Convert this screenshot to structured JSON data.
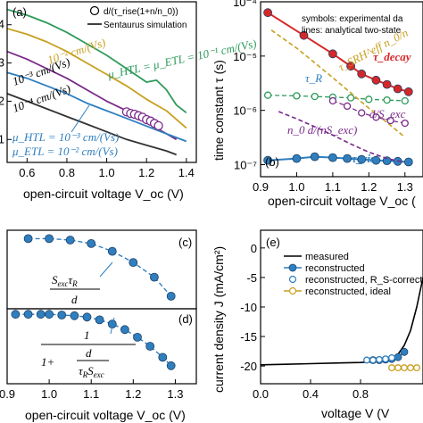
{
  "chart_data": [
    {
      "panel": "(a)",
      "type": "line",
      "xlabel": "open-circuit voltage V_oc (V)",
      "xlim": [
        0.5,
        1.45
      ],
      "xticks": [
        "0.6",
        "0.8",
        "1.0",
        "1.2",
        "1.4"
      ],
      "yticks": [
        "4",
        "3",
        "2",
        "1"
      ],
      "legend": [
        {
          "label": "d/(τ_rise(1+n/n_0))",
          "marker": "open-circle"
        },
        {
          "label": "Sentaurus simulation",
          "marker": "line"
        }
      ],
      "annotations": [
        {
          "text": "10⁻² cm/(Vs)",
          "color": "#c8a020"
        },
        {
          "text": "μ_HTL = μ_ETL = 10⁻¹ cm/(Vs)",
          "color": "#2e9a5a"
        },
        {
          "text": "10⁻³ cm/(Vs)",
          "color": "#000000"
        },
        {
          "text": "10⁻⁴ cm/(Vs)",
          "color": "#000000"
        },
        {
          "text": "μ_HTL = 10⁻³ cm/(Vs)",
          "color": "#2f7fbf"
        },
        {
          "text": "μ_ETL = 10⁻² cm/(Vs)",
          "color": "#2f7fbf"
        }
      ],
      "series": [
        {
          "label": "10⁻¹ cm/(Vs)",
          "color": "#2e9a5a",
          "x": [
            0.5,
            0.6,
            0.7,
            0.8,
            0.9,
            1.0,
            1.1,
            1.2,
            1.25,
            1.3,
            1.35,
            1.4
          ],
          "y": [
            4.4,
            4.25,
            4.05,
            3.8,
            3.5,
            3.2,
            2.85,
            2.5,
            2.55,
            2.3,
            1.9,
            1.7
          ]
        },
        {
          "label": "10⁻² cm/(Vs)",
          "color": "#c8a020",
          "x": [
            0.5,
            0.6,
            0.7,
            0.8,
            0.9,
            1.0,
            1.1,
            1.2,
            1.3,
            1.4
          ],
          "y": [
            3.9,
            3.75,
            3.55,
            3.3,
            3.0,
            2.7,
            2.4,
            2.05,
            1.75,
            1.3
          ]
        },
        {
          "label": "10⁻³ cm/(Vs)",
          "color": "#7a2a8a",
          "x": [
            0.5,
            0.6,
            0.7,
            0.8,
            0.9,
            1.0,
            1.1,
            1.2,
            1.3,
            1.35
          ],
          "y": [
            3.3,
            3.1,
            2.85,
            2.6,
            2.3,
            2.0,
            1.75,
            1.45,
            1.15,
            1.0
          ]
        },
        {
          "label": "μ_HTL = 10⁻³, μ_ETL = 10⁻²",
          "color": "#2f7fbf",
          "x": [
            0.5,
            0.6,
            0.7,
            0.8,
            0.9,
            1.0,
            1.1,
            1.2,
            1.3,
            1.4
          ],
          "y": [
            2.75,
            2.6,
            2.4,
            2.2,
            1.95,
            1.75,
            1.55,
            1.35,
            1.15,
            0.95
          ]
        },
        {
          "label": "10⁻⁴ cm/(Vs)",
          "color": "#333333",
          "x": [
            0.5,
            0.6,
            0.7,
            0.8,
            0.9,
            1.0,
            1.1,
            1.2,
            1.3,
            1.35
          ],
          "y": [
            2.2,
            2.0,
            1.8,
            1.6,
            1.4,
            1.2,
            1.0,
            0.85,
            0.7,
            0.6
          ]
        }
      ],
      "markers": {
        "label": "d/(τ_rise(1+n/n_0))",
        "color": "#7a2a8a",
        "x": [
          1.1,
          1.12,
          1.14,
          1.16,
          1.18,
          1.2,
          1.22,
          1.24,
          1.26
        ],
        "y": [
          1.72,
          1.68,
          1.66,
          1.62,
          1.58,
          1.52,
          1.48,
          1.42,
          1.36
        ]
      }
    },
    {
      "panel": "(b)",
      "type": "line",
      "xlabel": "open-circuit voltage V_oc (",
      "ylabel": "time constant τ (s)",
      "xlim": [
        0.9,
        1.35
      ],
      "yscale": "log",
      "ylim": [
        6e-08,
        0.0001
      ],
      "xticks": [
        "0.9",
        "1.0",
        "1.1",
        "1.2",
        "1.3"
      ],
      "yticks": [
        "10⁻⁷",
        "10⁻⁶",
        "10⁻⁵",
        "10⁻⁴"
      ],
      "legend_text": [
        "symbols: experimental da",
        "lines: analytical two-state"
      ],
      "annotations": [
        {
          "text": "τ_decay",
          "color": "#d62728"
        },
        {
          "text": "τ_SRH^eff n_0/n",
          "color": "#c8a020"
        },
        {
          "text": "τ_R",
          "color": "#2f7fbf"
        },
        {
          "text": "n_0 d/(nS_exc)",
          "color": "#7a2a8a"
        },
        {
          "text": "d/S_exc",
          "color": "#7a2a8a"
        },
        {
          "text": "τ_rise",
          "color": "#2f7fbf"
        }
      ],
      "series": [
        {
          "label": "τ_decay",
          "color": "#d62728",
          "marker": "filled-circle",
          "x": [
            0.92,
            1.02,
            1.1,
            1.15,
            1.18,
            1.22,
            1.25,
            1.28,
            1.31
          ],
          "y": [
            6.3e-05,
            2.4e-05,
            1.1e-05,
            6.5e-06,
            4.7e-06,
            3.6e-06,
            3e-06,
            2.5e-06,
            2.2e-06
          ]
        },
        {
          "label": "τ_rise",
          "color": "#2f7fbf",
          "marker": "filled-circle",
          "x": [
            0.92,
            1.0,
            1.05,
            1.1,
            1.14,
            1.18,
            1.22,
            1.25,
            1.28,
            1.31
          ],
          "y": [
            1.2e-07,
            1.3e-07,
            1.4e-07,
            1.35e-07,
            1.3e-07,
            1.25e-07,
            1.2e-07,
            1.18e-07,
            1.15e-07,
            1.12e-07
          ]
        },
        {
          "label": "τ_R",
          "color": "#2e9a5a",
          "marker": "open-circle",
          "x": [
            0.92,
            1.0,
            1.05,
            1.1,
            1.15,
            1.2,
            1.25,
            1.3
          ],
          "y": [
            1.9e-06,
            1.85e-06,
            1.8e-06,
            1.75e-06,
            1.7e-06,
            1.6e-06,
            1.55e-06,
            1.5e-06
          ]
        },
        {
          "label": "τ_SRH^eff n_0/n",
          "color": "#c8a020",
          "dash": true,
          "x": [
            0.93,
            1.0,
            1.05,
            1.1,
            1.15,
            1.2,
            1.25,
            1.3
          ],
          "y": [
            3e-05,
            1.4e-05,
            7.5e-06,
            4e-06,
            2.1e-06,
            1.1e-06,
            6e-07,
            3.2e-07
          ]
        },
        {
          "label": "n_0 d/(nS_exc)",
          "color": "#7a2a8a",
          "dash": true,
          "x": [
            0.95,
            1.0,
            1.05,
            1.1,
            1.15,
            1.2,
            1.25,
            1.3
          ],
          "y": [
            9.5e-07,
            7e-07,
            5e-07,
            3.5e-07,
            2.4e-07,
            1.7e-07,
            1.3e-07,
            1.1e-07
          ]
        },
        {
          "label": "d/S_exc",
          "color": "#7a2a8a",
          "marker": "open-circle",
          "x": [
            1.1,
            1.14,
            1.18,
            1.22,
            1.26,
            1.3
          ],
          "y": [
            1.5e-06,
            1.2e-06,
            9e-07,
            7.5e-07,
            6.5e-07,
            5.8e-07
          ]
        }
      ]
    },
    {
      "panel": "(c)",
      "type": "line",
      "xlim": [
        0.9,
        1.35
      ],
      "annotation": "S_exc τ_R / d",
      "series": [
        {
          "label": "S_exc τ_R / d",
          "color": "#2f7fbf",
          "marker": "filled-circle",
          "dash": true,
          "x": [
            0.95,
            1.0,
            1.05,
            1.1,
            1.15,
            1.2,
            1.25,
            1.29
          ],
          "y": [
            1.0,
            1.0,
            0.98,
            0.93,
            0.82,
            0.66,
            0.45,
            0.18
          ]
        }
      ]
    },
    {
      "panel": "(d)",
      "type": "line",
      "xlabel": "open-circuit voltage V_oc (V)",
      "xlim": [
        0.9,
        1.35
      ],
      "xticks": [
        "0.9",
        "1.0",
        "1.1",
        "1.2",
        "1.3"
      ],
      "annotation": "1 / (1 + d/(τ_R S_exc))",
      "series": [
        {
          "label": "1/(1+d/(τ_R S_exc))",
          "color": "#2f7fbf",
          "marker": "filled-circle",
          "dash": true,
          "x": [
            0.92,
            0.95,
            0.98,
            1.0,
            1.03,
            1.06,
            1.09,
            1.12,
            1.15,
            1.18,
            1.21,
            1.24,
            1.27,
            1.29
          ],
          "y": [
            1.0,
            1.0,
            1.0,
            1.0,
            0.99,
            0.98,
            0.96,
            0.92,
            0.86,
            0.78,
            0.67,
            0.54,
            0.38,
            0.26
          ]
        }
      ]
    },
    {
      "panel": "(e)",
      "type": "line",
      "xlabel": "voltage V (V",
      "ylabel": "current density J (mA/cm²)",
      "xlim": [
        0.0,
        1.3
      ],
      "ylim": [
        -23,
        3
      ],
      "xticks": [
        "0.0",
        "0.4",
        "0.8"
      ],
      "yticks": [
        "-20",
        "-15",
        "-10",
        "-5",
        "0"
      ],
      "legend": [
        {
          "label": "measured",
          "color": "#000000",
          "marker": "line"
        },
        {
          "label": "reconstructed",
          "color": "#2f7fbf",
          "marker": "filled-circle-line"
        },
        {
          "label": "reconstructed, R_S-corrected",
          "color": "#2f7fbf",
          "marker": "open-circle"
        },
        {
          "label": "reconstructed, ideal",
          "color": "#c8a020",
          "marker": "open-circle-line"
        }
      ],
      "series": [
        {
          "label": "measured",
          "color": "#000000",
          "x": [
            0.0,
            0.2,
            0.4,
            0.6,
            0.8,
            0.9,
            1.0,
            1.05,
            1.1,
            1.15,
            1.2,
            1.25,
            1.3
          ],
          "y": [
            -19.8,
            -19.7,
            -19.6,
            -19.5,
            -19.4,
            -19.3,
            -19.0,
            -18.7,
            -18.0,
            -16.5,
            -14.0,
            -10.0,
            -5.0
          ]
        },
        {
          "label": "reconstructed",
          "color": "#2f7fbf",
          "marker": "filled-circle",
          "x": [
            0.9,
            0.95,
            1.0,
            1.05,
            1.1,
            1.15
          ],
          "y": [
            -19.0,
            -19.0,
            -18.9,
            -18.8,
            -18.5,
            -17.6
          ]
        },
        {
          "label": "reconstructed, R_S-corrected",
          "color": "#2f7fbf",
          "marker": "open-circle",
          "x": [
            0.85,
            0.9,
            0.95,
            1.0,
            1.05
          ],
          "y": [
            -19.0,
            -19.0,
            -18.9,
            -18.8,
            -18.6
          ]
        },
        {
          "label": "reconstructed, ideal",
          "color": "#c8a020",
          "marker": "open-circle",
          "x": [
            1.05,
            1.1,
            1.15,
            1.2,
            1.25
          ],
          "y": [
            -20.3,
            -20.3,
            -20.3,
            -20.3,
            -20.3
          ]
        }
      ]
    }
  ]
}
